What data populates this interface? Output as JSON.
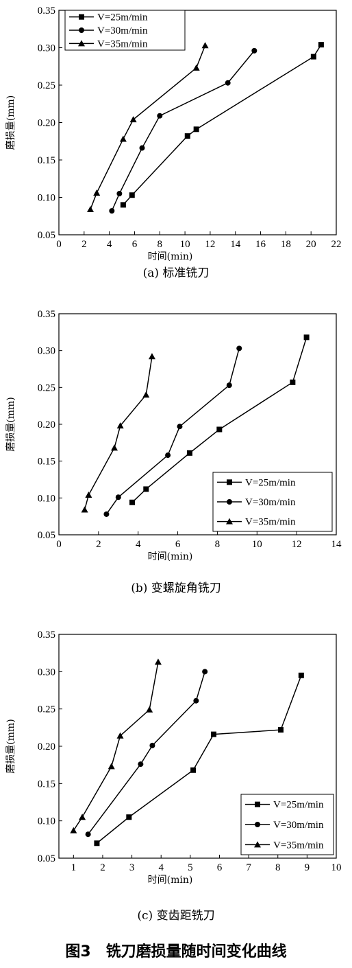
{
  "figure_title": "图3　铣刀磨损量随时间变化曲线",
  "chart_data": [
    {
      "type": "line",
      "caption": "(a) 标准铣刀",
      "xlabel": "时间(min)",
      "ylabel": "磨损量(mm)",
      "xlim": [
        0,
        22
      ],
      "ylim": [
        0.05,
        0.35
      ],
      "xticks": [
        0,
        2,
        4,
        6,
        8,
        10,
        12,
        14,
        16,
        18,
        20,
        22
      ],
      "yticks": [
        "0.05",
        "0.10",
        "0.15",
        "0.20",
        "0.25",
        "0.30",
        "0.35"
      ],
      "legend_position": "top-left",
      "series": [
        {
          "name": "V=25m/min",
          "marker": "square",
          "x": [
            5.1,
            5.8,
            10.2,
            10.9,
            20.2,
            20.8
          ],
          "y": [
            0.09,
            0.103,
            0.182,
            0.191,
            0.288,
            0.304
          ]
        },
        {
          "name": "V=30m/min",
          "marker": "circle",
          "x": [
            4.2,
            4.8,
            6.6,
            8.0,
            13.4,
            15.5
          ],
          "y": [
            0.082,
            0.105,
            0.166,
            0.209,
            0.253,
            0.296
          ]
        },
        {
          "name": "V=35m/min",
          "marker": "triangle",
          "x": [
            2.5,
            3.0,
            5.1,
            5.9,
            10.9,
            11.6
          ],
          "y": [
            0.084,
            0.106,
            0.178,
            0.204,
            0.273,
            0.303
          ]
        }
      ]
    },
    {
      "type": "line",
      "caption": "(b) 变螺旋角铣刀",
      "xlabel": "时间(min)",
      "ylabel": "磨损量(mm)",
      "xlim": [
        0,
        14
      ],
      "ylim": [
        0.05,
        0.35
      ],
      "xticks": [
        0,
        2,
        4,
        6,
        8,
        10,
        12,
        14
      ],
      "yticks": [
        "0.05",
        "0.10",
        "0.15",
        "0.20",
        "0.25",
        "0.30",
        "0.35"
      ],
      "legend_position": "bottom-right",
      "series": [
        {
          "name": "V=25m/min",
          "marker": "square",
          "x": [
            3.7,
            4.4,
            6.6,
            8.1,
            11.8,
            12.5
          ],
          "y": [
            0.094,
            0.112,
            0.161,
            0.193,
            0.257,
            0.318
          ]
        },
        {
          "name": "V=30m/min",
          "marker": "circle",
          "x": [
            2.4,
            3.0,
            5.5,
            6.1,
            8.6,
            9.1
          ],
          "y": [
            0.078,
            0.101,
            0.158,
            0.197,
            0.253,
            0.303
          ]
        },
        {
          "name": "V=35m/min",
          "marker": "triangle",
          "x": [
            1.3,
            1.5,
            2.8,
            3.1,
            4.4,
            4.7
          ],
          "y": [
            0.084,
            0.104,
            0.168,
            0.198,
            0.24,
            0.292
          ]
        }
      ]
    },
    {
      "type": "line",
      "caption": "(c) 变齿距铣刀",
      "xlabel": "时间(min)",
      "ylabel": "磨损量(mm)",
      "xlim": [
        0.5,
        10
      ],
      "ylim": [
        0.05,
        0.35
      ],
      "xticks": [
        1,
        2,
        3,
        4,
        5,
        6,
        7,
        8,
        9,
        10
      ],
      "yticks": [
        "0.05",
        "0.10",
        "0.15",
        "0.20",
        "0.25",
        "0.30",
        "0.35"
      ],
      "legend_position": "bottom-right",
      "series": [
        {
          "name": "V=25m/min",
          "marker": "square",
          "x": [
            1.8,
            2.9,
            5.1,
            5.8,
            8.1,
            8.8
          ],
          "y": [
            0.07,
            0.105,
            0.168,
            0.216,
            0.222,
            0.295
          ]
        },
        {
          "name": "V=30m/min",
          "marker": "circle",
          "x": [
            1.5,
            3.3,
            3.7,
            5.2,
            5.5
          ],
          "y": [
            0.082,
            0.176,
            0.201,
            0.261,
            0.3
          ]
        },
        {
          "name": "V=35m/min",
          "marker": "triangle",
          "x": [
            1.0,
            1.3,
            2.3,
            2.6,
            3.6,
            3.9
          ],
          "y": [
            0.087,
            0.105,
            0.173,
            0.214,
            0.249,
            0.313
          ]
        }
      ]
    }
  ]
}
